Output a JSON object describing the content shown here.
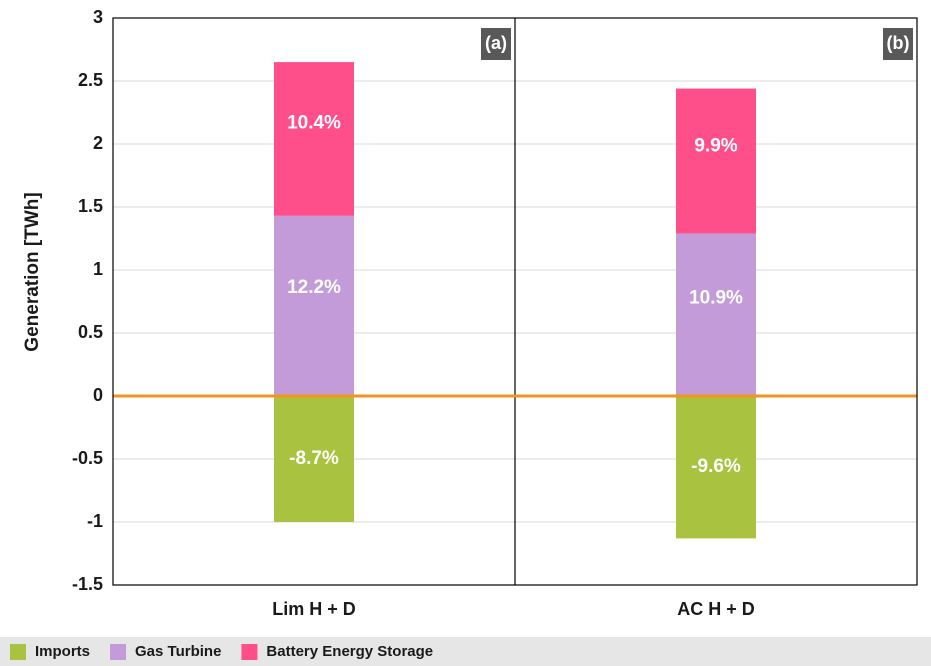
{
  "chart_data": {
    "type": "stacked_bar",
    "y_label": "Generation [TWh]",
    "categories": [
      "Lim H + D",
      "AC H + D"
    ],
    "panel_labels": [
      "(a)",
      "(b)"
    ],
    "series": [
      {
        "name": "Imports",
        "color": "#a9c23f",
        "values": [
          -1.0,
          -1.13
        ],
        "labels": [
          "-8.7%",
          "-9.6%"
        ]
      },
      {
        "name": "Gas Turbine",
        "color": "#c39bd9",
        "values": [
          1.43,
          1.29
        ],
        "labels": [
          "12.2%",
          "10.9%"
        ]
      },
      {
        "name": "Battery Energy Storage",
        "color": "#ff4f8b",
        "values": [
          1.22,
          1.15
        ],
        "labels": [
          "10.4%",
          "9.9%"
        ]
      }
    ],
    "ylim": [
      -1.5,
      3
    ],
    "yticks": [
      -1.5,
      -1,
      -0.5,
      0,
      0.5,
      1,
      1.5,
      2,
      2.5,
      3
    ],
    "grid": true,
    "zero_line_color": "#f0961e",
    "legend": "bottom"
  }
}
